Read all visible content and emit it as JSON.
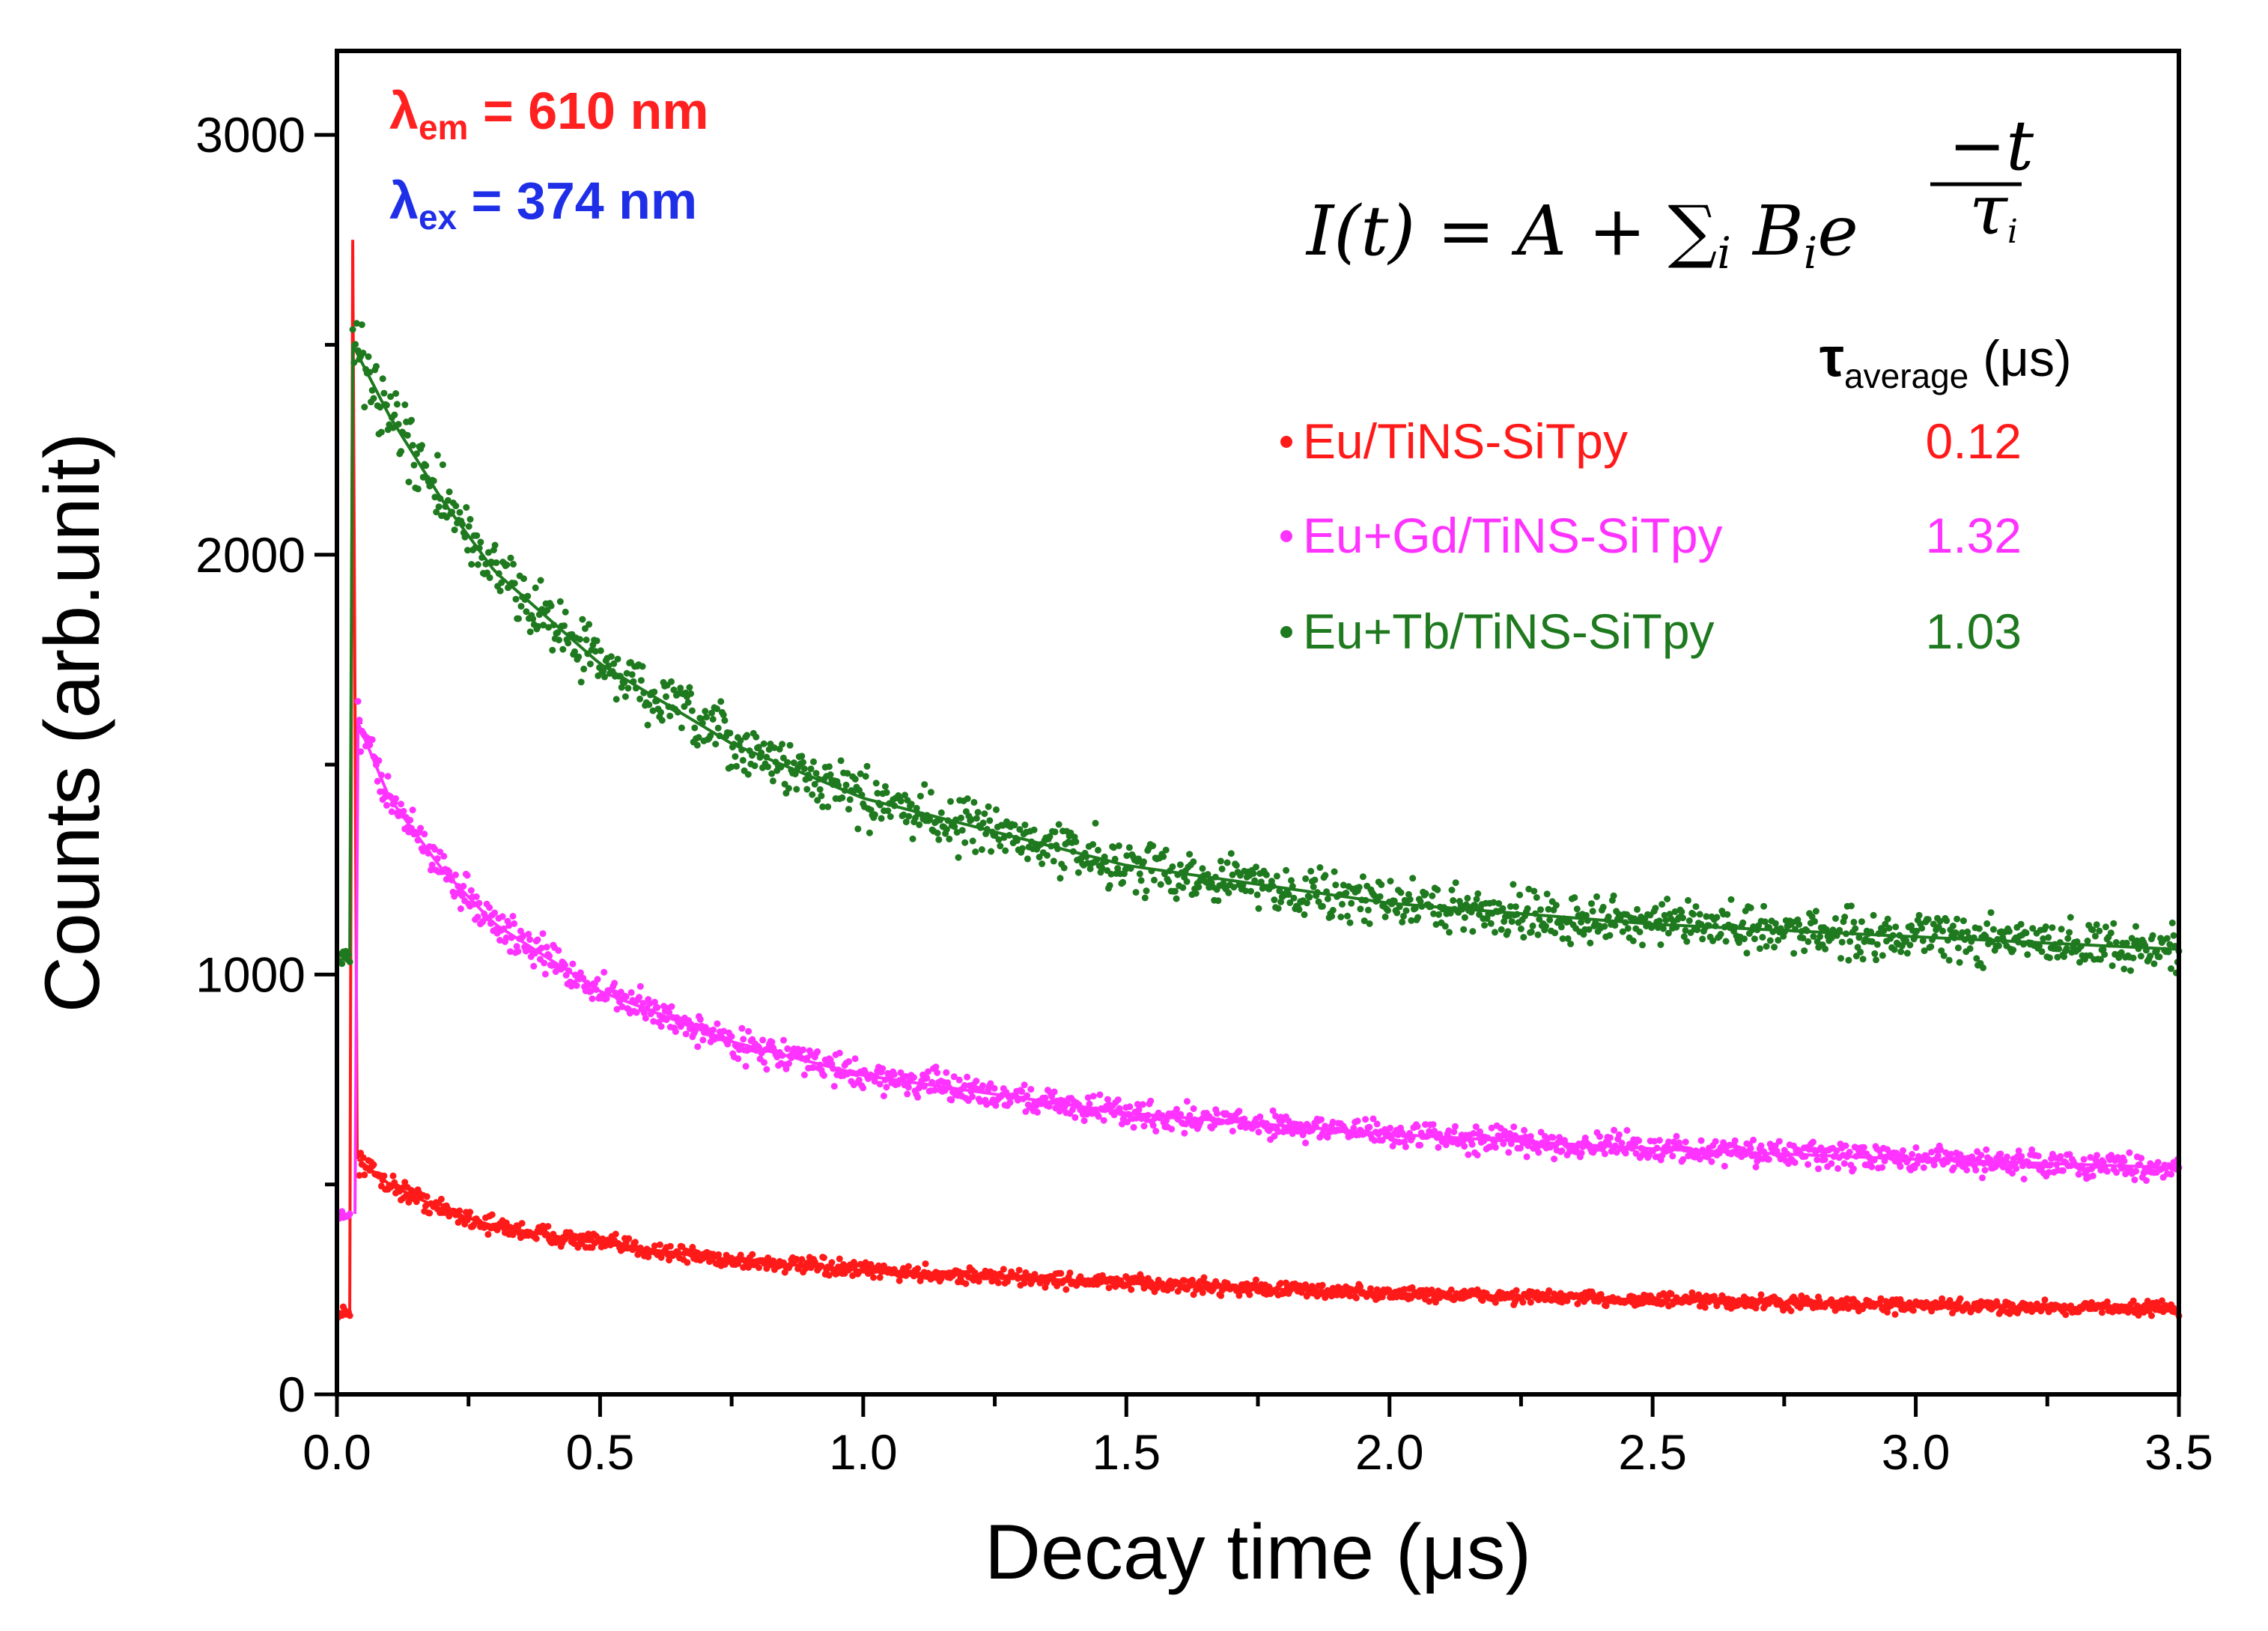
{
  "chart_data": {
    "type": "scatter",
    "title": "",
    "xlabel": "Decay time (μs)",
    "ylabel": "Counts (arb.unit)",
    "xlim": [
      0,
      3.5
    ],
    "ylim": [
      0,
      3200
    ],
    "x_ticks": [
      "0.0",
      "0.5",
      "1.0",
      "1.5",
      "2.0",
      "2.5",
      "3.0",
      "3.5"
    ],
    "y_ticks": [
      "0",
      "1000",
      "2000",
      "3000"
    ],
    "x_tick_values": [
      0,
      0.5,
      1.0,
      1.5,
      2.0,
      2.5,
      3.0,
      3.5
    ],
    "y_tick_values": [
      0,
      1000,
      2000,
      3000
    ],
    "annotations": {
      "em": {
        "symbol": "λ",
        "sub": "em",
        "text": " = 610 nm",
        "color": "#ff2020"
      },
      "ex": {
        "symbol": "λ",
        "sub": "ex",
        "text": " = 374 nm",
        "color": "#1f2fe8"
      },
      "formula": "I(t) = A + ∑i Bie−t/τi"
    },
    "legend": {
      "header_symbol": "τ",
      "header_sub": "average",
      "header_unit": " (μs)",
      "placement": "top-right"
    },
    "series": [
      {
        "name": "Eu/TiNS-SiTpy",
        "tau_average": "0.12",
        "color": "#ff1a1a",
        "peak": {
          "x": 0.03,
          "y": 2750
        },
        "pre_pulse_level": 190,
        "fit_points": [
          [
            0.04,
            560
          ],
          [
            0.1,
            500
          ],
          [
            0.2,
            440
          ],
          [
            0.3,
            400
          ],
          [
            0.5,
            360
          ],
          [
            0.75,
            320
          ],
          [
            1.0,
            295
          ],
          [
            1.5,
            265
          ],
          [
            2.0,
            240
          ],
          [
            2.5,
            225
          ],
          [
            3.0,
            210
          ],
          [
            3.5,
            205
          ]
        ]
      },
      {
        "name": "Eu+Gd/TiNS-SiTpy",
        "tau_average": "1.32",
        "color": "#ff33ff",
        "peak": {
          "x": 0.04,
          "y": 1600
        },
        "pre_pulse_level": 430,
        "fit_points": [
          [
            0.04,
            1600
          ],
          [
            0.1,
            1420
          ],
          [
            0.2,
            1250
          ],
          [
            0.3,
            1120
          ],
          [
            0.5,
            960
          ],
          [
            0.75,
            840
          ],
          [
            1.0,
            760
          ],
          [
            1.5,
            670
          ],
          [
            2.0,
            620
          ],
          [
            2.5,
            585
          ],
          [
            3.0,
            560
          ],
          [
            3.5,
            540
          ]
        ]
      },
      {
        "name": "Eu+Tb/TiNS-SiTpy",
        "tau_average": "1.03",
        "color": "#1f7a1f",
        "peak": {
          "x": 0.03,
          "y": 2500
        },
        "pre_pulse_level": 1040,
        "fit_points": [
          [
            0.03,
            2500
          ],
          [
            0.1,
            2330
          ],
          [
            0.2,
            2130
          ],
          [
            0.3,
            1960
          ],
          [
            0.5,
            1740
          ],
          [
            0.75,
            1550
          ],
          [
            1.0,
            1420
          ],
          [
            1.5,
            1260
          ],
          [
            2.0,
            1170
          ],
          [
            2.5,
            1120
          ],
          [
            3.0,
            1090
          ],
          [
            3.5,
            1060
          ]
        ]
      }
    ]
  }
}
